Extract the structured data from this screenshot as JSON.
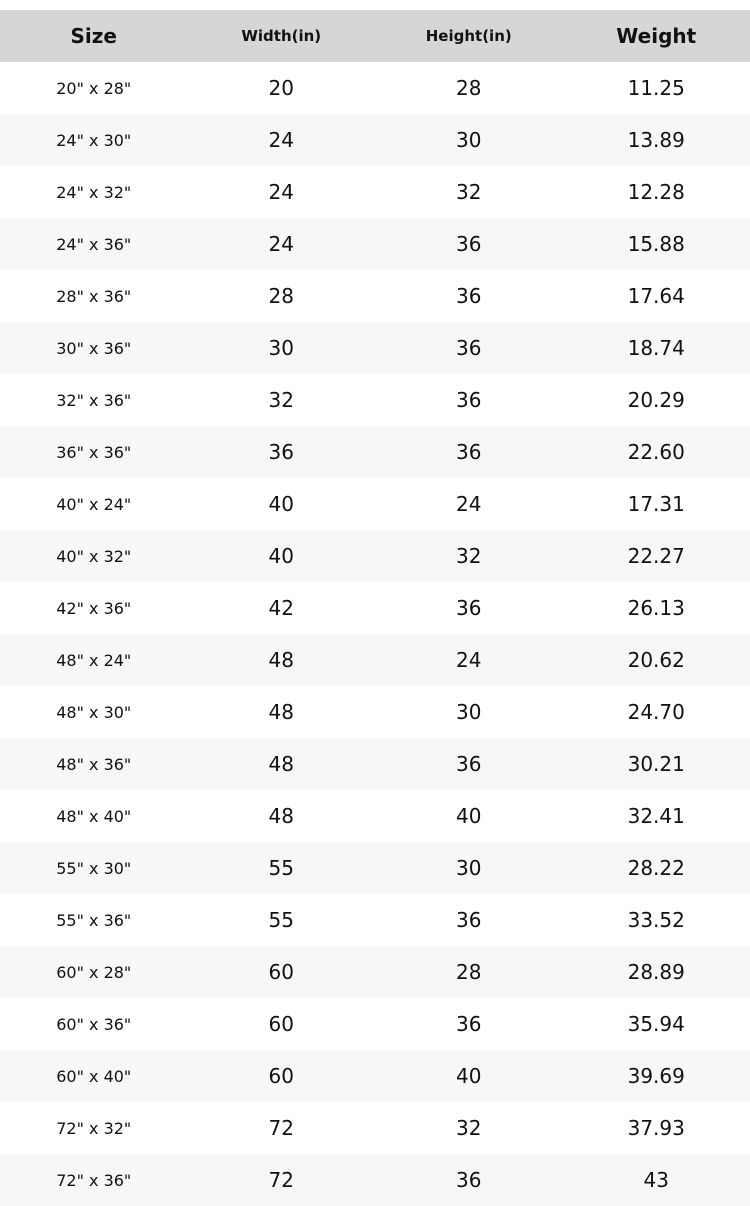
{
  "table": {
    "header": [
      "Size",
      "Width(in)",
      "Height(in)",
      "Weight"
    ],
    "rows": [
      [
        "20\" x 28\"",
        "20",
        "28",
        "11.25"
      ],
      [
        "24\" x 30\"",
        "24",
        "30",
        "13.89"
      ],
      [
        "24\" x 32\"",
        "24",
        "32",
        "12.28"
      ],
      [
        "24\" x 36\"",
        "24",
        "36",
        "15.88"
      ],
      [
        "28\" x 36\"",
        "28",
        "36",
        "17.64"
      ],
      [
        "30\" x 36\"",
        "30",
        "36",
        "18.74"
      ],
      [
        "32\" x 36\"",
        "32",
        "36",
        "20.29"
      ],
      [
        "36\" x 36\"",
        "36",
        "36",
        "22.60"
      ],
      [
        "40\" x 24\"",
        "40",
        "24",
        "17.31"
      ],
      [
        "40\" x 32\"",
        "40",
        "32",
        "22.27"
      ],
      [
        "42\" x 36\"",
        "42",
        "36",
        "26.13"
      ],
      [
        "48\" x 24\"",
        "48",
        "24",
        "20.62"
      ],
      [
        "48\" x 30\"",
        "48",
        "30",
        "24.70"
      ],
      [
        "48\" x 36\"",
        "48",
        "36",
        "30.21"
      ],
      [
        "48\" x 40\"",
        "48",
        "40",
        "32.41"
      ],
      [
        "55\" x 30\"",
        "55",
        "30",
        "28.22"
      ],
      [
        "55\" x 36\"",
        "55",
        "36",
        "33.52"
      ],
      [
        "60\" x 28\"",
        "60",
        "28",
        "28.89"
      ],
      [
        "60\" x 36\"",
        "60",
        "36",
        "35.94"
      ],
      [
        "60\" x 40\"",
        "60",
        "40",
        "39.69"
      ],
      [
        "72\" x 32\"",
        "72",
        "32",
        "37.93"
      ],
      [
        "72\" x 36\"",
        "72",
        "36",
        "43"
      ]
    ]
  }
}
